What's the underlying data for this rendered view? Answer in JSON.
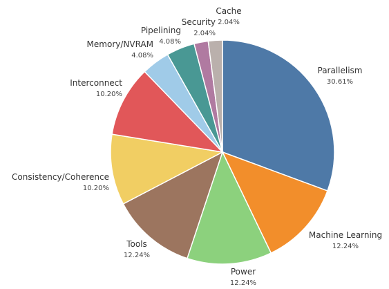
{
  "chart_data": {
    "type": "pie",
    "title": "",
    "slices": [
      {
        "label": "Parallelism",
        "value": 30.61,
        "pct_text": "30.61%",
        "color": "#4e79a7"
      },
      {
        "label": "Machine Learning",
        "value": 12.24,
        "pct_text": "12.24%",
        "color": "#f28e2b"
      },
      {
        "label": "Power",
        "value": 12.24,
        "pct_text": "12.24%",
        "color": "#8cd17d"
      },
      {
        "label": "Tools",
        "value": 12.24,
        "pct_text": "12.24%",
        "color": "#9c755f"
      },
      {
        "label": "Consistency/Coherence",
        "value": 10.2,
        "pct_text": "10.20%",
        "color": "#f1ce63"
      },
      {
        "label": "Interconnect",
        "value": 10.2,
        "pct_text": "10.20%",
        "color": "#e15759"
      },
      {
        "label": "Memory/NVRAM",
        "value": 4.08,
        "pct_text": "4.08%",
        "color": "#a0cbe8"
      },
      {
        "label": "Pipelining",
        "value": 4.08,
        "pct_text": "4.08%",
        "color": "#499894"
      },
      {
        "label": "Security",
        "value": 2.04,
        "pct_text": "2.04%",
        "color": "#b07aa1"
      },
      {
        "label": "Cache",
        "value": 2.04,
        "pct_text": "2.04%",
        "color": "#bab0ac"
      }
    ]
  }
}
